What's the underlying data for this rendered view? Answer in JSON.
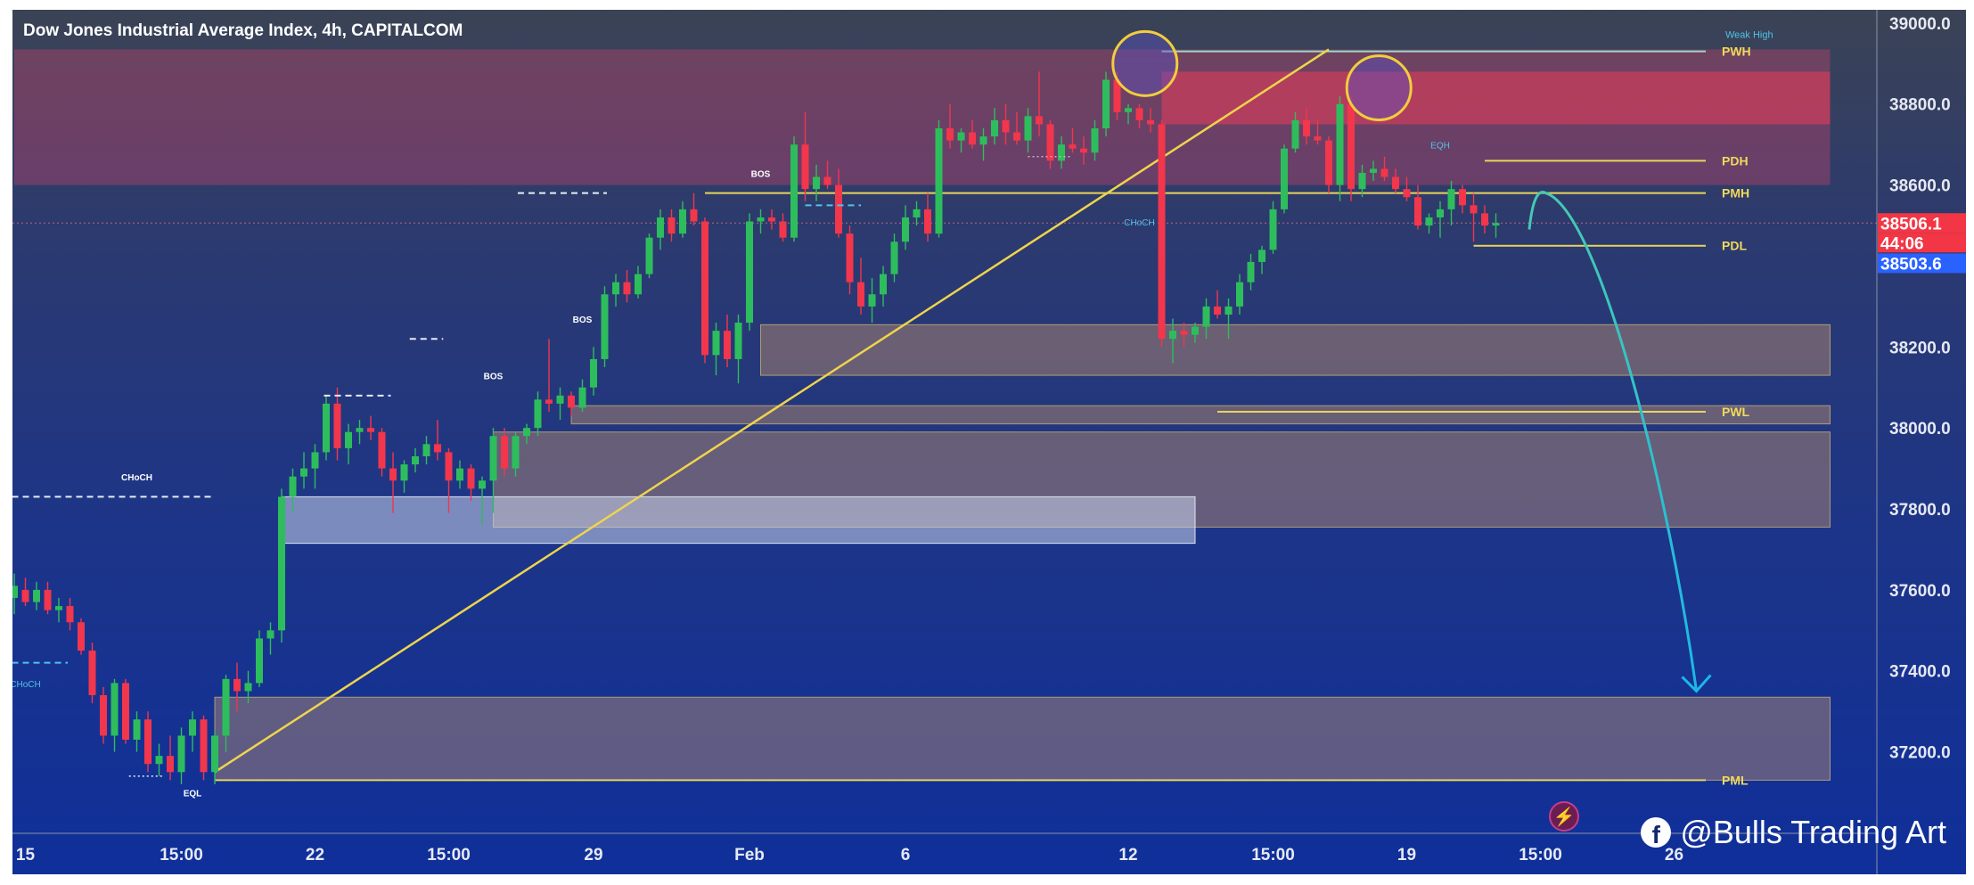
{
  "title": "Dow Jones Industrial Average Index, 4h, CAPITALCOM",
  "watermark": "@Bulls Trading Art",
  "chart_data": {
    "type": "candlestick",
    "title": "Dow Jones Industrial Average Index, 4h, CAPITALCOM",
    "ylim": [
      37050,
      39080
    ],
    "y_ticks": [
      "39000.0",
      "38800.0",
      "38600.0",
      "38200.0",
      "38000.0",
      "37800.0",
      "37600.0",
      "37400.0",
      "37200.0"
    ],
    "x_ticks": [
      {
        "label": "15",
        "i": 1
      },
      {
        "label": "15:00",
        "i": 15
      },
      {
        "label": "22",
        "i": 27
      },
      {
        "label": "15:00",
        "i": 39
      },
      {
        "label": "29",
        "i": 52
      },
      {
        "label": "Feb",
        "i": 66
      },
      {
        "label": "6",
        "i": 80
      },
      {
        "label": "12",
        "i": 100
      },
      {
        "label": "15:00",
        "i": 113
      },
      {
        "label": "19",
        "i": 125
      },
      {
        "label": "15:00",
        "i": 137
      },
      {
        "label": "26",
        "i": 149
      }
    ],
    "price_tags": [
      {
        "label": "38506.1",
        "value": 38506.1,
        "color": "#f23645"
      },
      {
        "label": "44:06",
        "value": 38506.1,
        "color": "#f23645",
        "offset_rows": 1
      },
      {
        "label": "38503.6",
        "value": 38503.6,
        "color": "#2962ff",
        "offset_rows": 2
      }
    ],
    "levels": [
      {
        "label": "PWH",
        "value": 38930,
        "start": 103
      },
      {
        "label": "PDH",
        "value": 38660,
        "start": 132
      },
      {
        "label": "PMH",
        "value": 38580,
        "start": 62
      },
      {
        "label": "PDL",
        "value": 38450,
        "start": 131
      },
      {
        "label": "PWL",
        "value": 38040,
        "start": 108
      },
      {
        "label": "PML",
        "value": 37130,
        "start": 18
      }
    ],
    "weak_high": "Weak High",
    "zones": [
      {
        "kind": "supply",
        "from": 0,
        "to": 163,
        "top": 38935,
        "bottom": 38600
      },
      {
        "kind": "supply-strong",
        "from": 103,
        "to": 163,
        "top": 38880,
        "bottom": 38750
      },
      {
        "kind": "demand",
        "from": 67,
        "to": 163,
        "top": 38255,
        "bottom": 38130
      },
      {
        "kind": "demand",
        "from": 50,
        "to": 163,
        "top": 38055,
        "bottom": 38010
      },
      {
        "kind": "demand",
        "from": 43,
        "to": 163,
        "top": 37990,
        "bottom": 37755
      },
      {
        "kind": "fvg",
        "from": 24,
        "to": 106,
        "top": 37830,
        "bottom": 37715
      },
      {
        "kind": "demand",
        "from": 18,
        "to": 163,
        "top": 37335,
        "bottom": 37130
      }
    ],
    "annotations": [
      {
        "text": "BOS",
        "i": 67,
        "value": 38620
      },
      {
        "text": "BOS",
        "i": 51,
        "value": 38260
      },
      {
        "text": "BOS",
        "i": 43,
        "value": 38120
      },
      {
        "text": "CHoCH",
        "i": 11,
        "value": 37870
      },
      {
        "text": "CHoCH",
        "i": 101,
        "value": 38500,
        "color": "blue"
      },
      {
        "text": "CHoCH",
        "i": 1,
        "value": 37360,
        "color": "blue"
      },
      {
        "text": "EQL",
        "i": 16,
        "value": 37090
      },
      {
        "text": "EQH",
        "i": 128,
        "value": 38690,
        "color": "blue"
      }
    ],
    "trendline": {
      "from_i": 18,
      "from_v": 37150,
      "to_i": 118,
      "to_v": 38935
    },
    "projection": {
      "from_i": 136,
      "from_v": 38490,
      "peak_i": 137.5,
      "peak_v": 38580,
      "to_i": 151,
      "to_v": 37350
    },
    "circles": [
      {
        "i": 101.5,
        "value": 38900
      },
      {
        "i": 122.5,
        "value": 38840
      }
    ],
    "candles": [
      [
        37580,
        37640,
        37540,
        37610
      ],
      [
        37600,
        37630,
        37560,
        37570
      ],
      [
        37570,
        37620,
        37550,
        37600
      ],
      [
        37600,
        37620,
        37540,
        37550
      ],
      [
        37550,
        37580,
        37520,
        37560
      ],
      [
        37560,
        37580,
        37500,
        37520
      ],
      [
        37520,
        37530,
        37440,
        37450
      ],
      [
        37450,
        37470,
        37320,
        37340
      ],
      [
        37340,
        37360,
        37220,
        37240
      ],
      [
        37240,
        37380,
        37200,
        37370
      ],
      [
        37370,
        37380,
        37220,
        37230
      ],
      [
        37230,
        37300,
        37200,
        37280
      ],
      [
        37280,
        37300,
        37150,
        37170
      ],
      [
        37170,
        37220,
        37140,
        37190
      ],
      [
        37190,
        37240,
        37130,
        37150
      ],
      [
        37150,
        37260,
        37120,
        37240
      ],
      [
        37240,
        37300,
        37200,
        37280
      ],
      [
        37280,
        37290,
        37130,
        37150
      ],
      [
        37150,
        37250,
        37120,
        37240
      ],
      [
        37240,
        37390,
        37200,
        37380
      ],
      [
        37380,
        37420,
        37300,
        37350
      ],
      [
        37350,
        37400,
        37320,
        37370
      ],
      [
        37370,
        37500,
        37360,
        37480
      ],
      [
        37480,
        37520,
        37440,
        37500
      ],
      [
        37500,
        37850,
        37470,
        37830
      ],
      [
        37830,
        37900,
        37790,
        37880
      ],
      [
        37880,
        37940,
        37850,
        37900
      ],
      [
        37900,
        37960,
        37850,
        37940
      ],
      [
        37940,
        38080,
        37920,
        38060
      ],
      [
        38060,
        38100,
        37920,
        37950
      ],
      [
        37950,
        38010,
        37910,
        37990
      ],
      [
        37990,
        38020,
        37960,
        38000
      ],
      [
        38000,
        38030,
        37970,
        37990
      ],
      [
        37990,
        38000,
        37880,
        37900
      ],
      [
        37900,
        37940,
        37790,
        37870
      ],
      [
        37870,
        37920,
        37840,
        37910
      ],
      [
        37910,
        37950,
        37890,
        37930
      ],
      [
        37930,
        37980,
        37910,
        37960
      ],
      [
        37960,
        38020,
        37920,
        37940
      ],
      [
        37940,
        37950,
        37790,
        37870
      ],
      [
        37870,
        37920,
        37850,
        37900
      ],
      [
        37900,
        37910,
        37820,
        37850
      ],
      [
        37850,
        37880,
        37760,
        37870
      ],
      [
        37870,
        38000,
        37790,
        37980
      ],
      [
        37980,
        38000,
        37880,
        37900
      ],
      [
        37900,
        37990,
        37880,
        37980
      ],
      [
        37980,
        38010,
        37960,
        38000
      ],
      [
        38000,
        38090,
        37980,
        38070
      ],
      [
        38070,
        38220,
        38040,
        38060
      ],
      [
        38060,
        38100,
        38020,
        38080
      ],
      [
        38080,
        38090,
        38030,
        38050
      ],
      [
        38050,
        38120,
        38040,
        38100
      ],
      [
        38100,
        38200,
        38080,
        38170
      ],
      [
        38170,
        38350,
        38150,
        38330
      ],
      [
        38330,
        38380,
        38300,
        38360
      ],
      [
        38360,
        38390,
        38310,
        38330
      ],
      [
        38330,
        38400,
        38320,
        38380
      ],
      [
        38380,
        38480,
        38370,
        38470
      ],
      [
        38470,
        38540,
        38440,
        38520
      ],
      [
        38520,
        38540,
        38460,
        38480
      ],
      [
        38480,
        38560,
        38470,
        38540
      ],
      [
        38540,
        38580,
        38500,
        38510
      ],
      [
        38510,
        38520,
        38160,
        38180
      ],
      [
        38180,
        38260,
        38130,
        38240
      ],
      [
        38240,
        38280,
        38150,
        38170
      ],
      [
        38170,
        38280,
        38110,
        38260
      ],
      [
        38260,
        38530,
        38240,
        38510
      ],
      [
        38510,
        38540,
        38480,
        38520
      ],
      [
        38520,
        38540,
        38490,
        38510
      ],
      [
        38510,
        38530,
        38460,
        38470
      ],
      [
        38470,
        38720,
        38460,
        38700
      ],
      [
        38700,
        38780,
        38560,
        38590
      ],
      [
        38590,
        38650,
        38560,
        38620
      ],
      [
        38620,
        38660,
        38590,
        38600
      ],
      [
        38600,
        38640,
        38470,
        38480
      ],
      [
        38480,
        38500,
        38330,
        38360
      ],
      [
        38360,
        38420,
        38280,
        38300
      ],
      [
        38300,
        38370,
        38260,
        38330
      ],
      [
        38330,
        38400,
        38300,
        38380
      ],
      [
        38380,
        38480,
        38360,
        38460
      ],
      [
        38460,
        38550,
        38440,
        38520
      ],
      [
        38520,
        38560,
        38500,
        38540
      ],
      [
        38540,
        38580,
        38460,
        38480
      ],
      [
        38480,
        38760,
        38470,
        38740
      ],
      [
        38740,
        38800,
        38690,
        38710
      ],
      [
        38710,
        38740,
        38680,
        38730
      ],
      [
        38730,
        38760,
        38690,
        38700
      ],
      [
        38700,
        38740,
        38660,
        38720
      ],
      [
        38720,
        38790,
        38700,
        38760
      ],
      [
        38760,
        38800,
        38700,
        38730
      ],
      [
        38730,
        38780,
        38700,
        38710
      ],
      [
        38710,
        38790,
        38680,
        38770
      ],
      [
        38770,
        38880,
        38720,
        38750
      ],
      [
        38750,
        38760,
        38640,
        38660
      ],
      [
        38660,
        38720,
        38640,
        38700
      ],
      [
        38700,
        38740,
        38680,
        38690
      ],
      [
        38690,
        38720,
        38650,
        38680
      ],
      [
        38680,
        38760,
        38660,
        38740
      ],
      [
        38740,
        38880,
        38720,
        38860
      ],
      [
        38860,
        38880,
        38760,
        38780
      ],
      [
        38780,
        38800,
        38750,
        38790
      ],
      [
        38790,
        38800,
        38740,
        38760
      ],
      [
        38760,
        38790,
        38730,
        38750
      ],
      [
        38750,
        38760,
        38200,
        38220
      ],
      [
        38220,
        38270,
        38160,
        38240
      ],
      [
        38240,
        38260,
        38200,
        38230
      ],
      [
        38230,
        38260,
        38210,
        38250
      ],
      [
        38250,
        38320,
        38220,
        38300
      ],
      [
        38300,
        38340,
        38270,
        38280
      ],
      [
        38280,
        38320,
        38220,
        38300
      ],
      [
        38300,
        38380,
        38280,
        38360
      ],
      [
        38360,
        38430,
        38340,
        38410
      ],
      [
        38410,
        38450,
        38380,
        38440
      ],
      [
        38440,
        38560,
        38430,
        38540
      ],
      [
        38540,
        38700,
        38530,
        38690
      ],
      [
        38690,
        38780,
        38680,
        38760
      ],
      [
        38760,
        38790,
        38700,
        38720
      ],
      [
        38720,
        38760,
        38700,
        38710
      ],
      [
        38710,
        38720,
        38580,
        38600
      ],
      [
        38600,
        38820,
        38560,
        38800
      ],
      [
        38800,
        38820,
        38560,
        38590
      ],
      [
        38590,
        38650,
        38570,
        38630
      ],
      [
        38630,
        38660,
        38610,
        38640
      ],
      [
        38640,
        38670,
        38610,
        38620
      ],
      [
        38620,
        38640,
        38580,
        38590
      ],
      [
        38590,
        38620,
        38560,
        38570
      ],
      [
        38570,
        38600,
        38490,
        38500
      ],
      [
        38500,
        38530,
        38480,
        38520
      ],
      [
        38520,
        38560,
        38470,
        38540
      ],
      [
        38540,
        38610,
        38500,
        38590
      ],
      [
        38590,
        38600,
        38530,
        38550
      ],
      [
        38550,
        38580,
        38460,
        38530
      ],
      [
        38530,
        38550,
        38480,
        38500
      ],
      [
        38500,
        38530,
        38470,
        38506
      ]
    ]
  }
}
